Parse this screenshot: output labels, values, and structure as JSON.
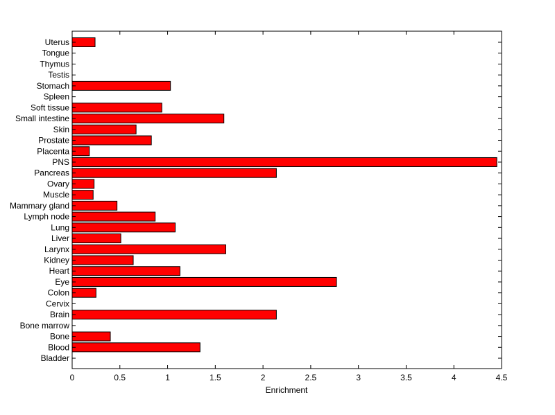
{
  "chart_data": {
    "type": "bar",
    "orientation": "horizontal",
    "title": "",
    "xlabel": "Enrichment",
    "ylabel": "",
    "xlim": [
      0,
      4.5
    ],
    "grid": false,
    "bar_color": "#ff0000",
    "x_ticks": [
      "0",
      "0.5",
      "1",
      "1.5",
      "2",
      "2.5",
      "3",
      "3.5",
      "4",
      "4.5"
    ],
    "categories": [
      "Uterus",
      "Tongue",
      "Thymus",
      "Testis",
      "Stomach",
      "Spleen",
      "Soft tissue",
      "Small intestine",
      "Skin",
      "Prostate",
      "Placenta",
      "PNS",
      "Pancreas",
      "Ovary",
      "Muscle",
      "Mammary gland",
      "Lymph node",
      "Lung",
      "Liver",
      "Larynx",
      "Kidney",
      "Heart",
      "Eye",
      "Colon",
      "Cervix",
      "Brain",
      "Bone marrow",
      "Bone",
      "Blood",
      "Bladder"
    ],
    "values": [
      0.24,
      0,
      0,
      0,
      1.03,
      0,
      0.94,
      1.59,
      0.67,
      0.83,
      0.18,
      4.45,
      2.14,
      0.23,
      0.22,
      0.47,
      0.87,
      1.08,
      0.51,
      1.61,
      0.64,
      1.13,
      2.77,
      0.25,
      0,
      2.14,
      0,
      0.4,
      1.34,
      0
    ]
  }
}
